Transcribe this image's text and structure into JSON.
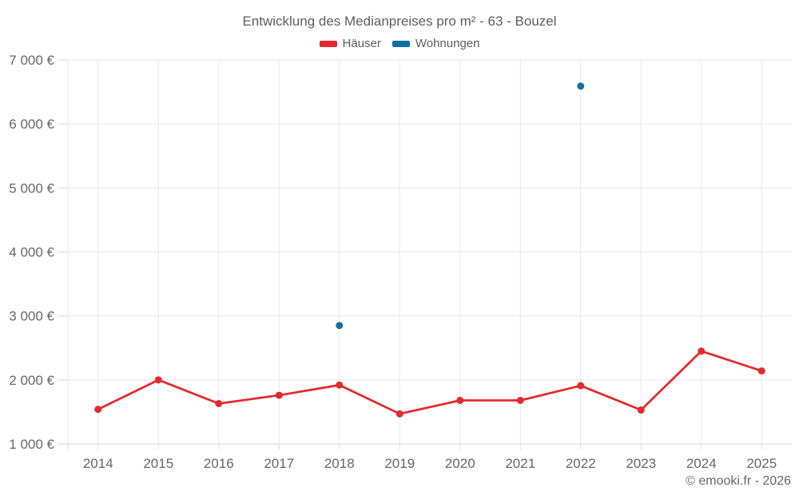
{
  "title": "Entwicklung des Medianpreises pro m² - 63 - Bouzel",
  "copyright": "© emooki.fr - 2026",
  "colors": {
    "haeuser": "#e22a2e",
    "wohnungen": "#156ea4",
    "gridline": "#e9e9e9",
    "axis_line": "#dadada",
    "text": "#666666"
  },
  "chart_data": {
    "type": "line",
    "title": "Entwicklung des Medianpreises pro m² - 63 - Bouzel",
    "categories": [
      "2014",
      "2015",
      "2016",
      "2017",
      "2018",
      "2019",
      "2020",
      "2021",
      "2022",
      "2023",
      "2024",
      "2025"
    ],
    "series": [
      {
        "name": "Häuser",
        "color": "#e22a2e",
        "values": [
          1540,
          2000,
          1630,
          1760,
          1920,
          1470,
          1680,
          1680,
          1910,
          1530,
          2450,
          2140
        ]
      },
      {
        "name": "Wohnungen",
        "color": "#156ea4",
        "values": [
          null,
          null,
          null,
          null,
          2850,
          null,
          null,
          null,
          6590,
          null,
          null,
          null
        ]
      }
    ],
    "xlabel": "",
    "ylabel": "",
    "ylim": [
      1000,
      7000
    ],
    "ytick_step": 1000,
    "ytick_labels": [
      "1 000 €",
      "2 000 €",
      "3 000 €",
      "4 000 €",
      "5 000 €",
      "6 000 €",
      "7 000 €"
    ],
    "grid": true,
    "legend_position": "top"
  }
}
